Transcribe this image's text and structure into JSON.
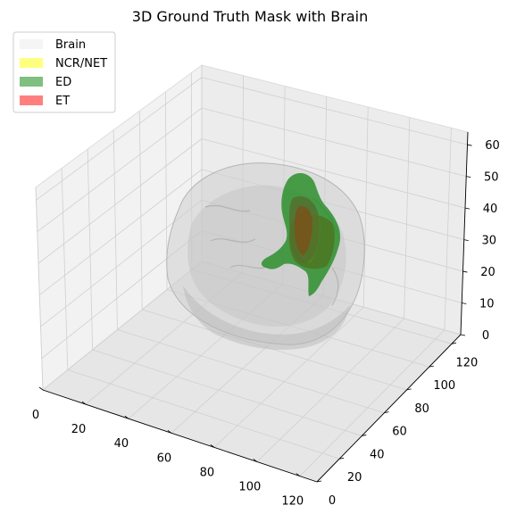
{
  "chart_data": {
    "type": "3d-volume",
    "title": "3D Ground Truth Mask with Brain",
    "legend_position": "top-left",
    "grid": true,
    "series": [
      {
        "name": "Brain",
        "color": "#ebebeb",
        "opacity": 0.5
      },
      {
        "name": "NCR/NET",
        "color": "#ffff00",
        "opacity": 0.5
      },
      {
        "name": "ED",
        "color": "#008000",
        "opacity": 0.5
      },
      {
        "name": "ET",
        "color": "#ff0000",
        "opacity": 0.5
      }
    ],
    "x_axis": {
      "ticks": [
        0,
        20,
        40,
        60,
        80,
        100,
        120
      ],
      "lim": [
        0,
        128
      ]
    },
    "y_axis": {
      "ticks": [
        0,
        20,
        40,
        60,
        80,
        100,
        120
      ],
      "lim": [
        0,
        128
      ]
    },
    "z_axis": {
      "ticks": [
        0,
        10,
        20,
        30,
        40,
        50,
        60
      ],
      "lim": [
        0,
        64
      ]
    }
  }
}
